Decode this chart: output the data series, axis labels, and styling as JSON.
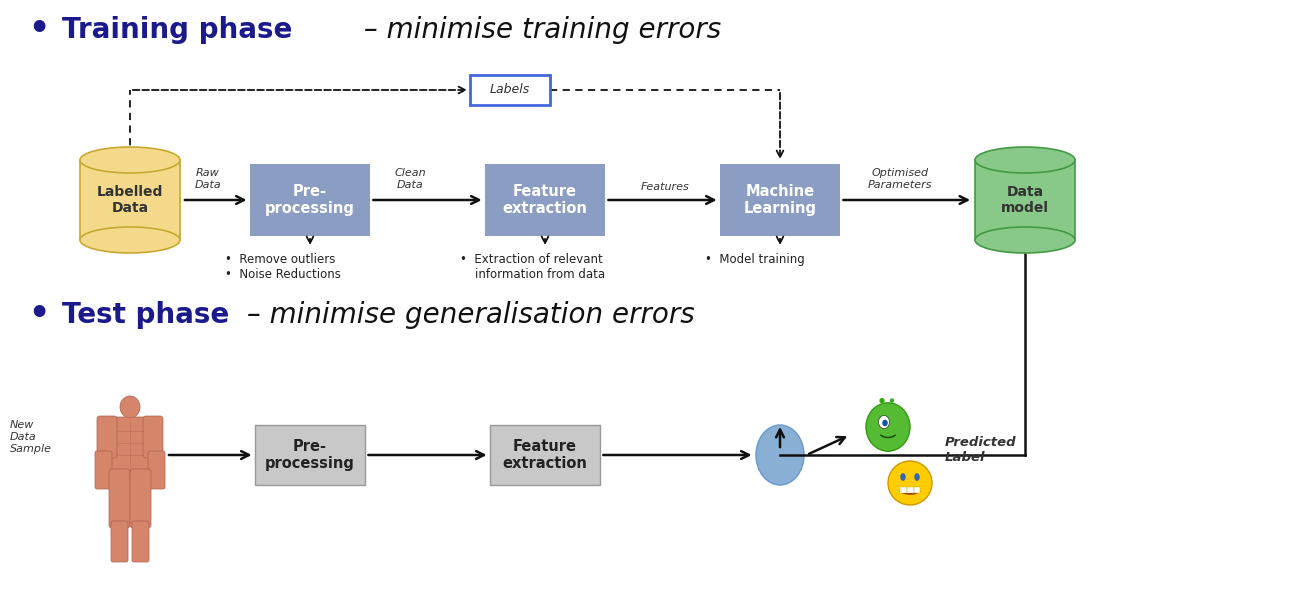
{
  "title_training_bold": "Training phase",
  "title_training_italic": " – minimise training errors",
  "title_test_bold": "Test phase",
  "title_test_italic": " – minimise generalisation errors",
  "bg_color": "#ffffff",
  "training_box_color": "#8B9DC3",
  "test_box_color": "#C8C8C8",
  "labels_box_edge": "#4466DD",
  "labelled_data_color": "#F5D98B",
  "labelled_data_edge": "#C8A832",
  "data_model_color": "#88C888",
  "data_model_edge": "#449944",
  "bullet_color": "#1a1a8c",
  "title_color": "#1a1a8c",
  "box_text_color": "#ffffff",
  "arrow_color": "#111111",
  "note_color": "#222222",
  "label_italic_color": "#333333"
}
